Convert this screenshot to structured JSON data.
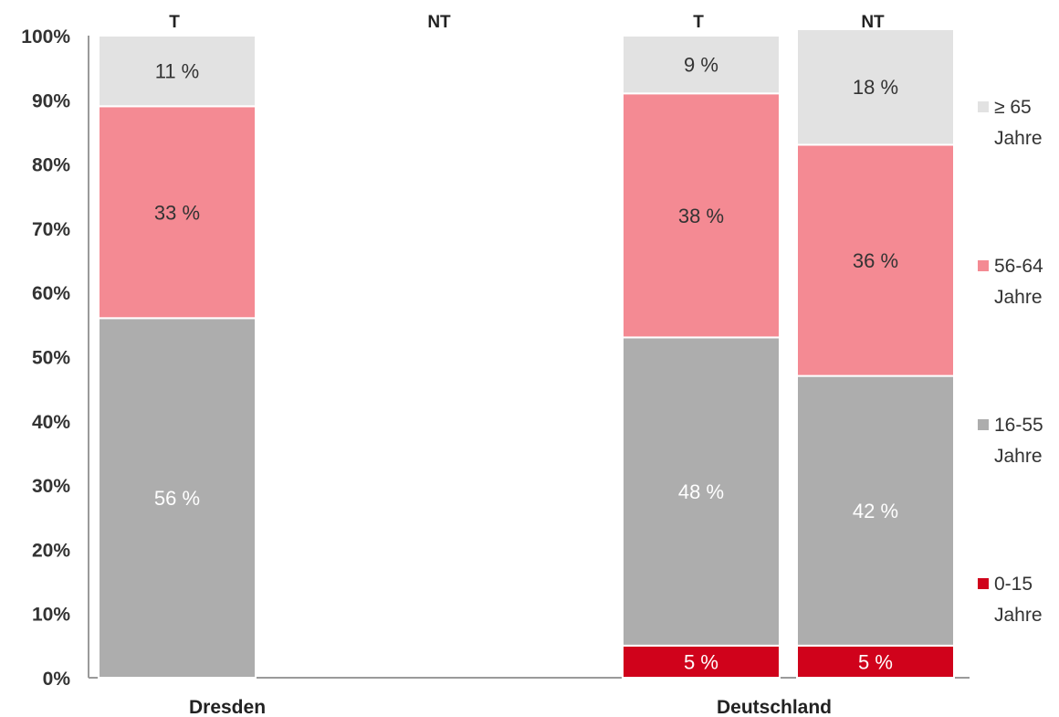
{
  "chart_data": {
    "type": "bar",
    "stacked": true,
    "percent_scale": true,
    "ylim": [
      0,
      100
    ],
    "yticks": [
      "0%",
      "10%",
      "20%",
      "30%",
      "40%",
      "50%",
      "60%",
      "70%",
      "80%",
      "90%",
      "100%"
    ],
    "groups": [
      "Dresden",
      "Deutschland"
    ],
    "columns": [
      {
        "group": "Dresden",
        "label": "T",
        "values": [
          0,
          56,
          33,
          11
        ]
      },
      {
        "group": "Dresden",
        "label": "NT",
        "values": [
          0,
          0,
          0,
          0
        ]
      },
      {
        "group": "Deutschland",
        "label": "T",
        "values": [
          5,
          48,
          38,
          9
        ]
      },
      {
        "group": "Deutschland",
        "label": "NT",
        "values": [
          5,
          42,
          36,
          18
        ]
      }
    ],
    "data_labels": [
      [
        "",
        "56 %",
        "33 %",
        "11 %"
      ],
      [
        "",
        "",
        "",
        ""
      ],
      [
        "5 %",
        "48 %",
        "38 %",
        "9 %"
      ],
      [
        "5 %",
        "42 %",
        "36 %",
        "18 %"
      ]
    ],
    "series": [
      {
        "name": "0-15 Jahre",
        "legend_lines": [
          "0-15",
          "Jahre"
        ],
        "color": "#d0021b",
        "label_color": "#ffffff"
      },
      {
        "name": "16-55 Jahre",
        "legend_lines": [
          "16-55",
          "Jahre"
        ],
        "color": "#adadad",
        "label_color": "#ffffff"
      },
      {
        "name": "56-64 Jahre",
        "legend_lines": [
          "56-64",
          "Jahre"
        ],
        "color": "#f48a93",
        "label_color": "#333333"
      },
      {
        "name": "≥ 65 Jahre",
        "legend_lines": [
          "≥ 65",
          "Jahre"
        ],
        "color": "#e2e2e2",
        "label_color": "#333333"
      }
    ],
    "legend_position": "right",
    "grid": false
  }
}
